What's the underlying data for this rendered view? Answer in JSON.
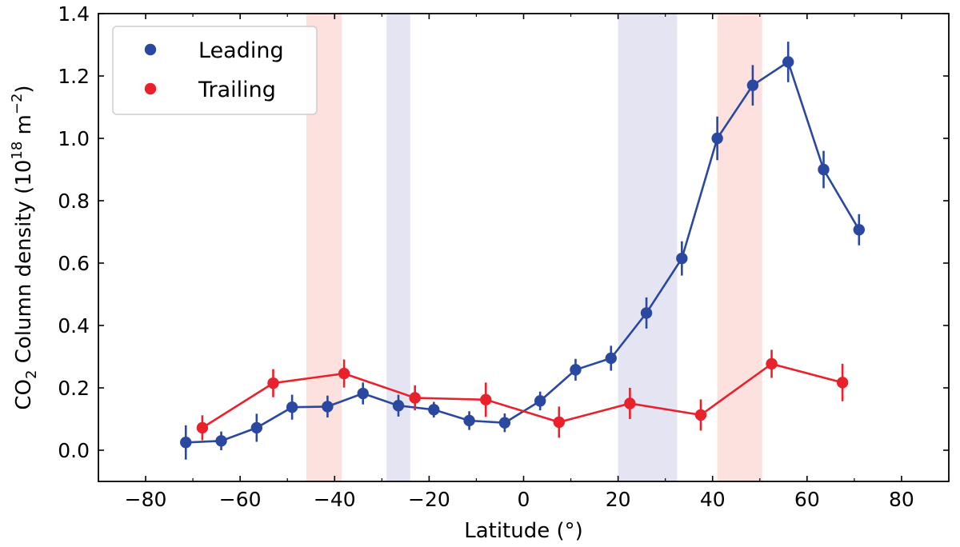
{
  "chart_data": {
    "type": "scatter",
    "xlabel": "Latitude (°)",
    "ylabel": {
      "prefix": "CO",
      "sub": "2",
      "middle": " Column density (10",
      "sup1": "18",
      "unit": " m",
      "sup2": "−2",
      "suffix": ")"
    },
    "xlim": [
      -90,
      90
    ],
    "ylim": [
      -0.1,
      1.4
    ],
    "x_ticks": [
      -80,
      -60,
      -40,
      -20,
      0,
      20,
      40,
      60,
      80
    ],
    "x_tick_labels": [
      "−80",
      "−60",
      "−40",
      "−20",
      "0",
      "20",
      "40",
      "60",
      "80"
    ],
    "y_ticks": [
      0.0,
      0.2,
      0.4,
      0.6,
      0.8,
      1.0,
      1.2,
      1.4
    ],
    "y_tick_labels": [
      "0.0",
      "0.2",
      "0.4",
      "0.6",
      "0.8",
      "1.0",
      "1.2",
      "1.4"
    ],
    "grid": false,
    "legend_position": "top-left",
    "shaded_bands": [
      {
        "x0": -46,
        "x1": -38.5,
        "color": "#fce1de"
      },
      {
        "x0": -29,
        "x1": -24,
        "color": "#e4e4f3"
      },
      {
        "x0": 20,
        "x1": 32.5,
        "color": "#e4e4f3"
      },
      {
        "x0": 41,
        "x1": 50.5,
        "color": "#fce1de"
      }
    ],
    "series": [
      {
        "name": "Leading",
        "color": "#2a48a0",
        "x": [
          -71.5,
          -64,
          -56.5,
          -49,
          -41.5,
          -34,
          -26.5,
          -19,
          -11.5,
          -4,
          3.5,
          11,
          18.5,
          26,
          33.5,
          41,
          48.5,
          56,
          63.5,
          71
        ],
        "y": [
          0.025,
          0.03,
          0.072,
          0.138,
          0.14,
          0.182,
          0.143,
          0.13,
          0.095,
          0.088,
          0.158,
          0.258,
          0.295,
          0.44,
          0.615,
          1.0,
          1.17,
          1.245,
          0.9,
          0.707
        ],
        "err": [
          0.055,
          0.03,
          0.045,
          0.04,
          0.035,
          0.035,
          0.035,
          0.025,
          0.03,
          0.03,
          0.03,
          0.035,
          0.04,
          0.05,
          0.055,
          0.07,
          0.065,
          0.065,
          0.06,
          0.05
        ]
      },
      {
        "name": "Trailing",
        "color": "#e8212b",
        "x": [
          -68,
          -53,
          -38,
          -23,
          -8,
          7.5,
          22.5,
          37.5,
          52.5,
          67.5
        ],
        "y": [
          0.072,
          0.215,
          0.246,
          0.168,
          0.162,
          0.09,
          0.15,
          0.113,
          0.277,
          0.217
        ],
        "err": [
          0.04,
          0.045,
          0.045,
          0.04,
          0.055,
          0.05,
          0.05,
          0.05,
          0.045,
          0.06
        ]
      }
    ]
  }
}
